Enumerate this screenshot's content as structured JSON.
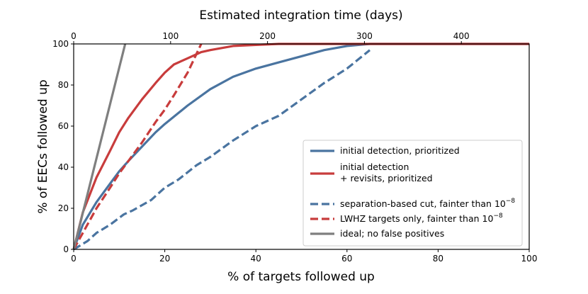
{
  "chart_data": {
    "type": "line",
    "title": "",
    "xlabel": "% of targets followed up",
    "ylabel": "% of EECs followed up",
    "xlim": [
      0,
      100
    ],
    "ylim": [
      0,
      100
    ],
    "x_ticks": [
      "0",
      "20",
      "40",
      "60",
      "80",
      "100"
    ],
    "y_ticks": [
      "0",
      "20",
      "40",
      "60",
      "80",
      "100"
    ],
    "top_axis": {
      "label": "Estimated integration time (days)",
      "lim": [
        0,
        470
      ],
      "ticks": [
        "0",
        "100",
        "200",
        "300",
        "400"
      ],
      "tick_values": [
        0,
        100,
        200,
        300,
        400
      ]
    },
    "grid": false,
    "legend_position": "lower-right",
    "series": [
      {
        "name": "initial detection, prioritized",
        "legend_lines": [
          "initial detection, prioritized"
        ],
        "color": "#4a74a0",
        "style": "solid",
        "x": [
          0,
          2,
          5,
          8,
          10,
          12,
          15,
          18,
          20,
          25,
          30,
          35,
          40,
          45,
          50,
          55,
          60,
          65,
          70,
          80,
          90,
          100
        ],
        "y": [
          0,
          12,
          23,
          32,
          38,
          43,
          50,
          57,
          61,
          70,
          78,
          84,
          88,
          91,
          94,
          97,
          99,
          100,
          100,
          100,
          100,
          100
        ]
      },
      {
        "name": "initial detection + revisits, prioritized",
        "legend_lines": [
          "initial detection",
          "+ revisits, prioritized"
        ],
        "color": "#c83c3c",
        "style": "solid",
        "x": [
          0,
          2,
          5,
          8,
          10,
          12,
          15,
          18,
          20,
          22,
          25,
          28,
          30,
          35,
          40,
          45,
          50,
          60,
          70,
          80,
          90,
          100
        ],
        "y": [
          0,
          18,
          35,
          48,
          57,
          64,
          73,
          81,
          86,
          90,
          93,
          96,
          97,
          99,
          99.5,
          100,
          100,
          100,
          100,
          100,
          100,
          100
        ]
      },
      {
        "name": "separation-based cut, fainter than 10^-8",
        "legend_lines": [
          "separation-based cut, fainter than 10",
          "−8"
        ],
        "color": "#4a74a0",
        "style": "dashed",
        "x": [
          0,
          3,
          5,
          8,
          11,
          13,
          17,
          20,
          23,
          27,
          30,
          35,
          40,
          45,
          50,
          55,
          60,
          65
        ],
        "y": [
          0,
          4,
          8,
          12,
          17,
          19,
          24,
          30,
          34,
          41,
          45,
          53,
          60,
          65,
          73,
          81,
          88,
          97
        ]
      },
      {
        "name": "LWHZ targets only, fainter than 10^-8",
        "legend_lines": [
          "LWHZ targets only, fainter than 10",
          "−8"
        ],
        "color": "#c83c3c",
        "style": "dashed",
        "x": [
          0,
          2,
          5,
          8,
          10,
          12,
          15,
          18,
          20,
          22,
          25,
          28
        ],
        "y": [
          0,
          8,
          20,
          30,
          37,
          43,
          52,
          62,
          68,
          75,
          86,
          100
        ]
      },
      {
        "name": "ideal; no false positives",
        "legend_lines": [
          "ideal; no false positives"
        ],
        "color": "#7f7f7f",
        "style": "solid",
        "x": [
          0,
          11.3
        ],
        "y": [
          0,
          100
        ]
      }
    ]
  }
}
